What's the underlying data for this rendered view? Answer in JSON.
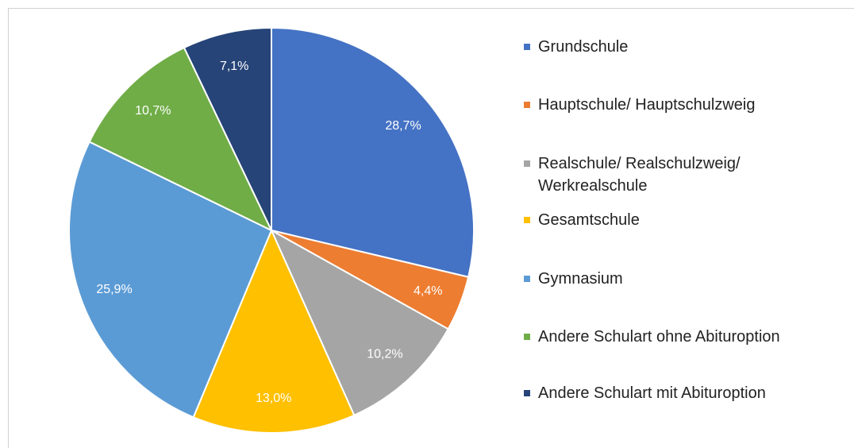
{
  "chart_data": {
    "type": "pie",
    "categories": [
      "Grundschule",
      "Hauptschule/ Hauptschulzweig",
      "Realschule/ Realschulzweig/ Werkrealschule",
      "Gesamtschule",
      "Gymnasium",
      "Andere Schulart ohne Abituroption",
      "Andere Schulart mit Abituroption"
    ],
    "values": [
      28.7,
      4.4,
      10.2,
      13.0,
      25.9,
      10.7,
      7.1
    ],
    "value_labels": [
      "28,7%",
      "4,4%",
      "10,2%",
      "13,0%",
      "25,9%",
      "10,7%",
      "7,1%"
    ],
    "colors": [
      "#4472c4",
      "#ed7d31",
      "#a5a5a5",
      "#ffc000",
      "#5b9bd5",
      "#70ad47",
      "#264478"
    ],
    "legend": "right"
  }
}
